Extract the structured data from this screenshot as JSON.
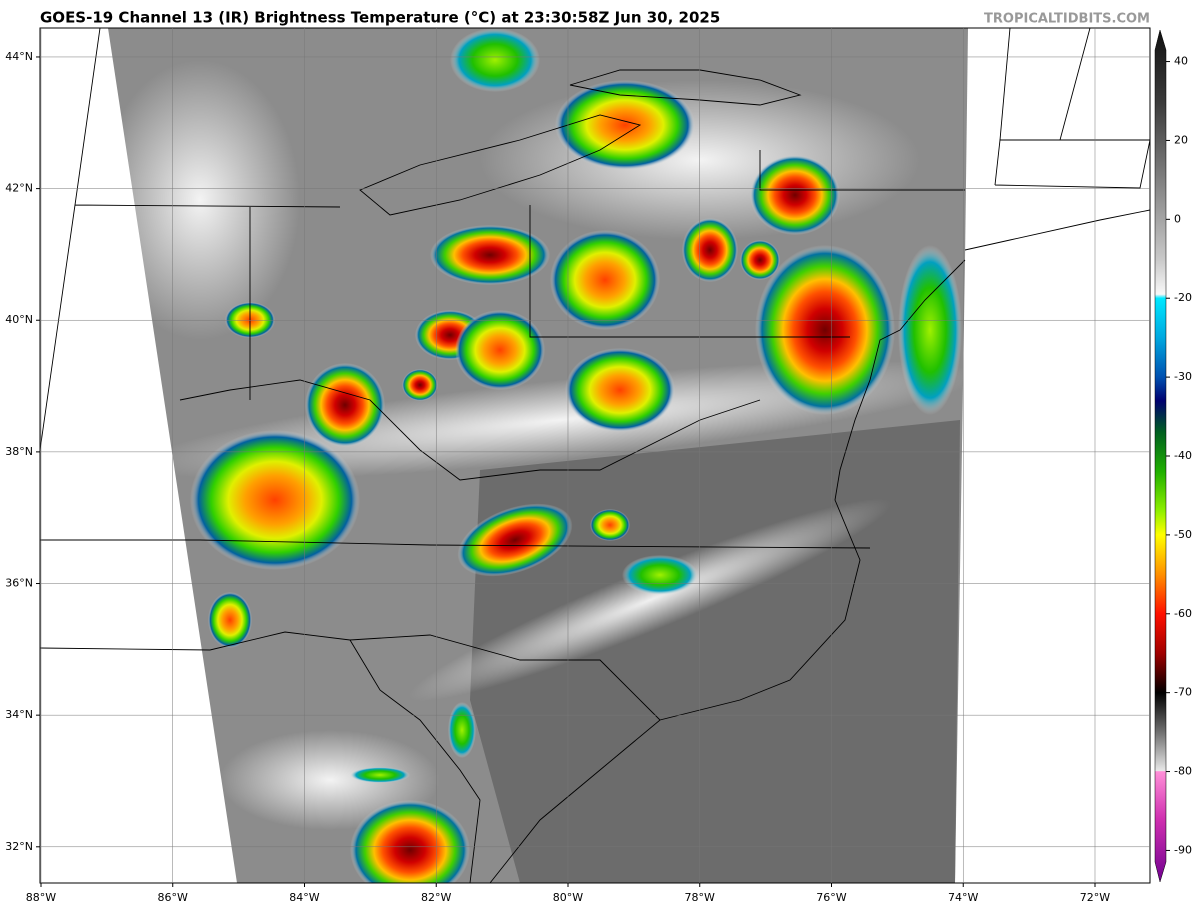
{
  "header": {
    "title": "GOES-19 Channel 13 (IR) Brightness Temperature (°C) at 23:30:58Z Jun 30, 2025",
    "credit": "TROPICALTIDBITS.COM"
  },
  "map": {
    "xlim": [
      -88.015,
      -71.165
    ],
    "ylim": [
      31.45,
      44.44
    ],
    "grid": true,
    "xticks": [
      {
        "value": -88,
        "label": "88°W"
      },
      {
        "value": -86,
        "label": "86°W"
      },
      {
        "value": -84,
        "label": "84°W"
      },
      {
        "value": -82,
        "label": "82°W"
      },
      {
        "value": -80,
        "label": "80°W"
      },
      {
        "value": -78,
        "label": "78°W"
      },
      {
        "value": -76,
        "label": "76°W"
      },
      {
        "value": -74,
        "label": "74°W"
      },
      {
        "value": -72,
        "label": "72°W"
      }
    ],
    "yticks": [
      {
        "value": 32,
        "label": "32°N"
      },
      {
        "value": 34,
        "label": "34°N"
      },
      {
        "value": 36,
        "label": "36°N"
      },
      {
        "value": 38,
        "label": "38°N"
      },
      {
        "value": 40,
        "label": "40°N"
      },
      {
        "value": 42,
        "label": "42°N"
      },
      {
        "value": 44,
        "label": "44°N"
      }
    ]
  },
  "colorbar": {
    "lim": [
      48,
      -94
    ],
    "ticks": [
      40,
      20,
      0,
      -20,
      -30,
      -40,
      -50,
      -60,
      -70,
      -80,
      -90
    ],
    "stops": [
      {
        "value": 48,
        "color": "#111111"
      },
      {
        "value": 30,
        "color": "#3a3a3a"
      },
      {
        "value": 10,
        "color": "#808080"
      },
      {
        "value": -10,
        "color": "#c8c8c8"
      },
      {
        "value": -19,
        "color": "#f8f8f8"
      },
      {
        "value": -20,
        "color": "#00e8ff"
      },
      {
        "value": -25,
        "color": "#00a8e0"
      },
      {
        "value": -30,
        "color": "#0050b0"
      },
      {
        "value": -33,
        "color": "#000070"
      },
      {
        "value": -37,
        "color": "#006020"
      },
      {
        "value": -42,
        "color": "#20b000"
      },
      {
        "value": -47,
        "color": "#90f000"
      },
      {
        "value": -50,
        "color": "#ffff00"
      },
      {
        "value": -55,
        "color": "#ff9000"
      },
      {
        "value": -60,
        "color": "#ff1000"
      },
      {
        "value": -65,
        "color": "#a00000"
      },
      {
        "value": -70,
        "color": "#000000"
      },
      {
        "value": -75,
        "color": "#707070"
      },
      {
        "value": -79.9,
        "color": "#e8e8e8"
      },
      {
        "value": -80,
        "color": "#ff90d8"
      },
      {
        "value": -86,
        "color": "#d030b0"
      },
      {
        "value": -94,
        "color": "#700090"
      }
    ]
  }
}
